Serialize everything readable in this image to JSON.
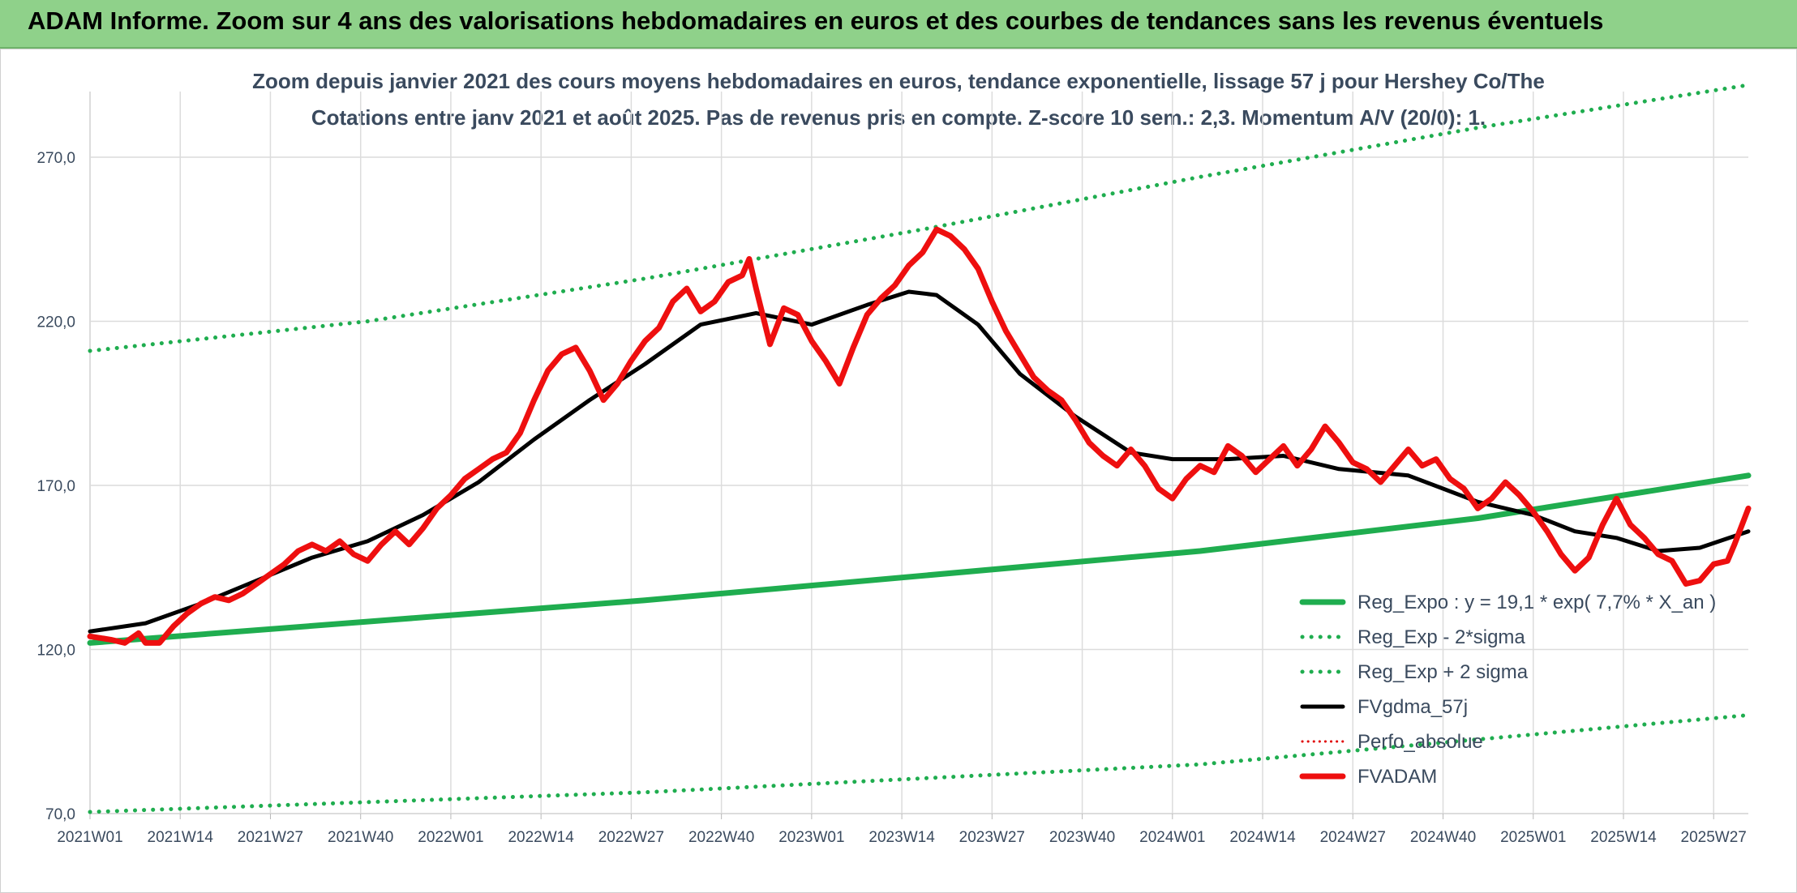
{
  "banner": {
    "title": "ADAM Informe. Zoom sur 4 ans des valorisations hebdomadaires en euros et des courbes de tendances sans les revenus éventuels"
  },
  "colors": {
    "regression": "#1fad4f",
    "sigma_bands": "#1fad4f",
    "moving_average": "#000000",
    "perfo_absolue": "#e00000",
    "fvadam": "#ee0f0f",
    "grid": "#dcdcdc",
    "banner": "#8fd18a"
  },
  "chart_data": {
    "type": "line",
    "title": "Zoom depuis janvier 2021 des cours moyens hebdomadaires en euros, tendance exponentielle, lissage 57 j pour Hershey Co/The",
    "subtitle": "Cotations entre janv 2021 et août 2025. Pas de revenus pris en compte. Z-score 10 sem.: 2,3. Momentum A/V (20/0): 1.",
    "xlabel": "",
    "ylabel": "",
    "ylim": [
      70,
      290
    ],
    "xlim": [
      0,
      239
    ],
    "grid": true,
    "legend_position": "bottom-right",
    "y_ticks": [
      {
        "value": 70,
        "label": "70,0"
      },
      {
        "value": 120,
        "label": "120,0"
      },
      {
        "value": 170,
        "label": "170,0"
      },
      {
        "value": 220,
        "label": "220,0"
      },
      {
        "value": 270,
        "label": "270,0"
      }
    ],
    "x_ticks": [
      {
        "index": 0,
        "label": "2021W01"
      },
      {
        "index": 13,
        "label": "2021W14"
      },
      {
        "index": 26,
        "label": "2021W27"
      },
      {
        "index": 39,
        "label": "2021W40"
      },
      {
        "index": 52,
        "label": "2022W01"
      },
      {
        "index": 65,
        "label": "2022W14"
      },
      {
        "index": 78,
        "label": "2022W27"
      },
      {
        "index": 91,
        "label": "2022W40"
      },
      {
        "index": 104,
        "label": "2023W01"
      },
      {
        "index": 117,
        "label": "2023W14"
      },
      {
        "index": 130,
        "label": "2023W27"
      },
      {
        "index": 143,
        "label": "2023W40"
      },
      {
        "index": 156,
        "label": "2024W01"
      },
      {
        "index": 169,
        "label": "2024W14"
      },
      {
        "index": 182,
        "label": "2024W27"
      },
      {
        "index": 195,
        "label": "2024W40"
      },
      {
        "index": 208,
        "label": "2025W01"
      },
      {
        "index": 221,
        "label": "2025W14"
      },
      {
        "index": 234,
        "label": "2025W27"
      }
    ],
    "series": [
      {
        "name": "Reg_Expo : y = 19,1 * exp( 7,7% *  X_an )",
        "style": "solid-thick",
        "color": "#1fad4f",
        "points": [
          [
            0,
            122
          ],
          [
            80,
            135
          ],
          [
            160,
            150
          ],
          [
            200,
            160
          ],
          [
            239,
            173
          ]
        ]
      },
      {
        "name": "Reg_Exp - 2*sigma",
        "style": "dotted",
        "color": "#1fad4f",
        "points": [
          [
            0,
            70.5
          ],
          [
            80,
            76.5
          ],
          [
            160,
            85
          ],
          [
            239,
            100
          ]
        ]
      },
      {
        "name": "Reg_Exp + 2 sigma",
        "style": "dotted",
        "color": "#1fad4f",
        "points": [
          [
            0,
            211
          ],
          [
            40,
            220
          ],
          [
            80,
            233
          ],
          [
            120,
            248
          ],
          [
            160,
            264
          ],
          [
            200,
            279
          ],
          [
            239,
            292
          ]
        ]
      },
      {
        "name": "FVgdma_57j",
        "style": "solid",
        "color": "#000000",
        "points": [
          [
            0,
            125.5
          ],
          [
            8,
            128
          ],
          [
            16,
            134
          ],
          [
            24,
            141
          ],
          [
            32,
            148
          ],
          [
            40,
            153
          ],
          [
            48,
            161
          ],
          [
            56,
            171
          ],
          [
            64,
            184
          ],
          [
            72,
            196
          ],
          [
            80,
            207
          ],
          [
            88,
            219
          ],
          [
            96,
            222.5
          ],
          [
            104,
            219
          ],
          [
            112,
            225
          ],
          [
            118,
            229
          ],
          [
            122,
            228
          ],
          [
            128,
            219
          ],
          [
            134,
            204
          ],
          [
            142,
            191
          ],
          [
            150,
            180
          ],
          [
            156,
            178
          ],
          [
            164,
            178
          ],
          [
            172,
            179
          ],
          [
            180,
            175
          ],
          [
            190,
            173
          ],
          [
            200,
            165
          ],
          [
            208,
            161
          ],
          [
            214,
            156
          ],
          [
            220,
            154
          ],
          [
            226,
            150
          ],
          [
            232,
            151
          ],
          [
            239,
            156
          ]
        ]
      },
      {
        "name": "Perfo_absolue",
        "style": "dotted-thin",
        "color": "#e00000",
        "points": []
      },
      {
        "name": "FVADAM",
        "style": "solid-thick",
        "color": "#ee0f0f",
        "points": [
          [
            0,
            124
          ],
          [
            3,
            123
          ],
          [
            5,
            122
          ],
          [
            7,
            125
          ],
          [
            8,
            122
          ],
          [
            10,
            122
          ],
          [
            12,
            127
          ],
          [
            14,
            131
          ],
          [
            16,
            134
          ],
          [
            18,
            136
          ],
          [
            20,
            135
          ],
          [
            22,
            137
          ],
          [
            24,
            140
          ],
          [
            26,
            143
          ],
          [
            28,
            146
          ],
          [
            30,
            150
          ],
          [
            32,
            152
          ],
          [
            34,
            150
          ],
          [
            36,
            153
          ],
          [
            38,
            149
          ],
          [
            40,
            147
          ],
          [
            42,
            152
          ],
          [
            44,
            156
          ],
          [
            46,
            152
          ],
          [
            48,
            157
          ],
          [
            50,
            163
          ],
          [
            52,
            167
          ],
          [
            54,
            172
          ],
          [
            56,
            175
          ],
          [
            58,
            178
          ],
          [
            60,
            180
          ],
          [
            62,
            186
          ],
          [
            64,
            196
          ],
          [
            66,
            205
          ],
          [
            68,
            210
          ],
          [
            70,
            212
          ],
          [
            72,
            205
          ],
          [
            74,
            196
          ],
          [
            76,
            201
          ],
          [
            78,
            208
          ],
          [
            80,
            214
          ],
          [
            82,
            218
          ],
          [
            84,
            226
          ],
          [
            86,
            230
          ],
          [
            88,
            223
          ],
          [
            90,
            226
          ],
          [
            92,
            232
          ],
          [
            94,
            234
          ],
          [
            95,
            239
          ],
          [
            96,
            230
          ],
          [
            98,
            213
          ],
          [
            100,
            224
          ],
          [
            102,
            222
          ],
          [
            104,
            214
          ],
          [
            106,
            208
          ],
          [
            108,
            201
          ],
          [
            110,
            212
          ],
          [
            112,
            222
          ],
          [
            114,
            227
          ],
          [
            116,
            231
          ],
          [
            118,
            237
          ],
          [
            120,
            241
          ],
          [
            122,
            248
          ],
          [
            124,
            246
          ],
          [
            126,
            242
          ],
          [
            128,
            236
          ],
          [
            130,
            226
          ],
          [
            132,
            217
          ],
          [
            134,
            210
          ],
          [
            136,
            203
          ],
          [
            138,
            199
          ],
          [
            140,
            196
          ],
          [
            142,
            190
          ],
          [
            144,
            183
          ],
          [
            146,
            179
          ],
          [
            148,
            176
          ],
          [
            150,
            181
          ],
          [
            152,
            176
          ],
          [
            154,
            169
          ],
          [
            156,
            166
          ],
          [
            158,
            172
          ],
          [
            160,
            176
          ],
          [
            162,
            174
          ],
          [
            164,
            182
          ],
          [
            166,
            179
          ],
          [
            168,
            174
          ],
          [
            170,
            178
          ],
          [
            172,
            182
          ],
          [
            174,
            176
          ],
          [
            176,
            181
          ],
          [
            178,
            188
          ],
          [
            180,
            183
          ],
          [
            182,
            177
          ],
          [
            184,
            175
          ],
          [
            186,
            171
          ],
          [
            188,
            176
          ],
          [
            190,
            181
          ],
          [
            192,
            176
          ],
          [
            194,
            178
          ],
          [
            196,
            172
          ],
          [
            198,
            169
          ],
          [
            200,
            163
          ],
          [
            202,
            166
          ],
          [
            204,
            171
          ],
          [
            206,
            167
          ],
          [
            208,
            162
          ],
          [
            210,
            156
          ],
          [
            212,
            149
          ],
          [
            214,
            144
          ],
          [
            216,
            148
          ],
          [
            218,
            158
          ],
          [
            220,
            166
          ],
          [
            222,
            158
          ],
          [
            224,
            154
          ],
          [
            226,
            149
          ],
          [
            228,
            147
          ],
          [
            230,
            140
          ],
          [
            232,
            141
          ],
          [
            234,
            146
          ],
          [
            236,
            147
          ],
          [
            237,
            152
          ],
          [
            239,
            163
          ]
        ]
      }
    ]
  }
}
